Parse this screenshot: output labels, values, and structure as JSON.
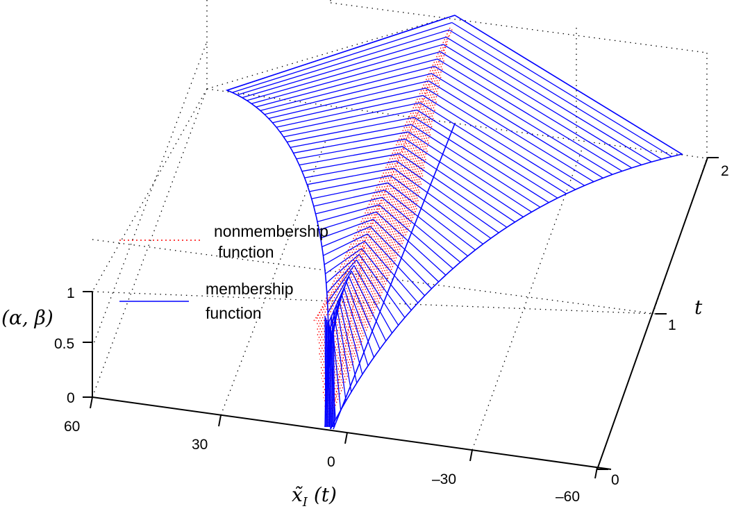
{
  "chart_data": {
    "type": "surface-3d",
    "title": "",
    "xlabel": "x̃",
    "xlabel_sub": "I",
    "xlabel_suffix": " (t)",
    "ylabel": "t",
    "zlabel": "(α, β)",
    "xlim": [
      -60,
      60
    ],
    "ylim": [
      0,
      2
    ],
    "zlim": [
      0,
      1
    ],
    "x_ticks": [
      "60",
      "30",
      "0",
      "–30",
      "–60"
    ],
    "y_ticks": [
      "0",
      "1",
      "2"
    ],
    "z_ticks": [
      "0",
      "0.5",
      "1"
    ],
    "grid": true,
    "legend_placement": "upper-left",
    "series": [
      {
        "name": "membership function",
        "color": "#0000ff",
        "style": "solid"
      },
      {
        "name": "nonmembership function",
        "color": "#ff0000",
        "style": "dotted"
      }
    ],
    "legend": {
      "nonmembership_line1": "nonmembership",
      "nonmembership_line2": "function",
      "membership_line1": "membership",
      "membership_line2": "function"
    }
  }
}
